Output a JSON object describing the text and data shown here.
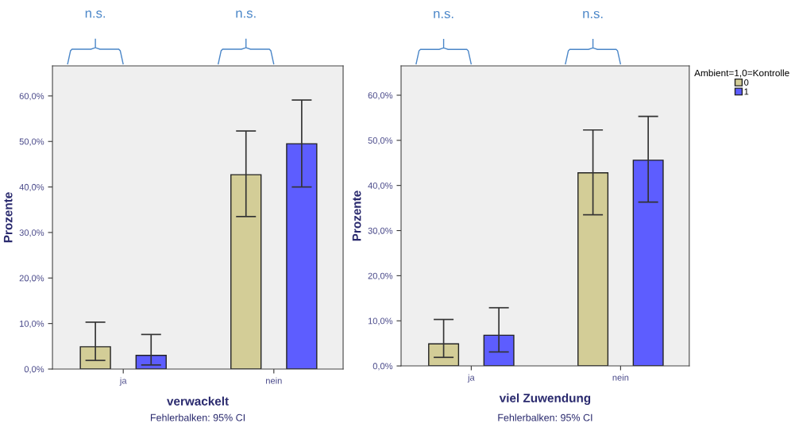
{
  "chart_data": [
    {
      "type": "bar",
      "xlabel": "verwackelt",
      "ylabel": "Prozente",
      "categories": [
        "ja",
        "nein"
      ],
      "series": [
        {
          "color": "#d3cd97",
          "values": [
            4.9,
            42.7
          ],
          "errors": [
            [
              1.9,
              10.3
            ],
            [
              33.5,
              52.3
            ]
          ]
        },
        {
          "color": "#5d5dff",
          "values": [
            3.0,
            49.5
          ],
          "errors": [
            [
              0.9,
              7.6
            ],
            [
              40.0,
              59.1
            ]
          ]
        }
      ],
      "ylim": [
        0,
        66.6
      ],
      "yticks": [
        {
          "value": 0,
          "label": "0,0%"
        },
        {
          "value": 10,
          "label": "10,0%"
        },
        {
          "value": 20,
          "label": "20,0%"
        },
        {
          "value": 30,
          "label": "30,0%"
        },
        {
          "value": 40,
          "label": "40,0%"
        },
        {
          "value": 50,
          "label": "50,0%"
        },
        {
          "value": 60,
          "label": "60,0%"
        }
      ],
      "grid": false,
      "annotations": [
        "n.s.",
        "n.s.",
        "Fehlerbalken: 95% CI"
      ]
    },
    {
      "type": "bar",
      "xlabel": "viel Zuwendung",
      "ylabel": "Prozente",
      "categories": [
        "ja",
        "nein"
      ],
      "series": [
        {
          "name": "0",
          "color": "#d3cd97",
          "values": [
            4.9,
            42.8
          ],
          "errors": [
            [
              1.9,
              10.3
            ],
            [
              33.5,
              52.3
            ]
          ]
        },
        {
          "name": "1",
          "color": "#5d5dff",
          "values": [
            6.8,
            45.6
          ],
          "errors": [
            [
              3.1,
              12.9
            ],
            [
              36.3,
              55.3
            ]
          ]
        }
      ],
      "ylim": [
        0,
        66.5
      ],
      "yticks": [
        {
          "value": 0,
          "label": "0,0%"
        },
        {
          "value": 10,
          "label": "10,0%"
        },
        {
          "value": 20,
          "label": "20,0%"
        },
        {
          "value": 30,
          "label": "30,0%"
        },
        {
          "value": 40,
          "label": "40,0%"
        },
        {
          "value": 50,
          "label": "50,0%"
        },
        {
          "value": 60,
          "label": "60,0%"
        }
      ],
      "grid": false,
      "legend": "right",
      "legend_title": "Ambient=1,0=Kontrolle",
      "annotations": [
        "n.s.",
        "n.s.",
        "Fehlerbalken: 95% CI"
      ]
    }
  ]
}
